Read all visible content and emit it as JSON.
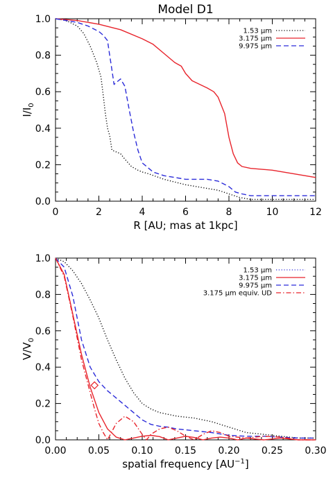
{
  "chart_data": [
    {
      "type": "line",
      "title": "Model D1",
      "xlabel": "R [AU; mas at 1kpc]",
      "ylabel_base": "I/I",
      "ylabel_sub": "0",
      "xlim": [
        0,
        12
      ],
      "ylim": [
        0,
        1.0
      ],
      "xticks": [
        "0",
        "2",
        "4",
        "6",
        "8",
        "10",
        "12"
      ],
      "yticks": [
        "0.0",
        "0.2",
        "0.4",
        "0.6",
        "0.8",
        "1.0"
      ],
      "legend_position": "top-right",
      "series": [
        {
          "name": "1.53 μm",
          "color": "#000000",
          "dash": "dotted",
          "x": [
            0,
            0.5,
            1.0,
            1.3,
            1.6,
            1.9,
            2.1,
            2.2,
            2.3,
            2.4,
            2.5,
            2.6,
            2.8,
            3.0,
            3.2,
            3.5,
            3.8,
            4.0,
            4.3,
            5.0,
            6.0,
            7.0,
            7.5,
            8.0,
            8.5,
            9.0,
            12.0
          ],
          "y": [
            1.0,
            0.99,
            0.96,
            0.92,
            0.85,
            0.76,
            0.68,
            0.58,
            0.48,
            0.4,
            0.36,
            0.28,
            0.27,
            0.26,
            0.23,
            0.19,
            0.17,
            0.16,
            0.15,
            0.12,
            0.09,
            0.07,
            0.06,
            0.04,
            0.02,
            0.01,
            0.01
          ]
        },
        {
          "name": "3.175 μm",
          "color": "#e8232b",
          "dash": "solid",
          "x": [
            0,
            1.0,
            2.0,
            3.0,
            4.0,
            4.5,
            5.0,
            5.5,
            5.8,
            6.0,
            6.3,
            7.0,
            7.3,
            7.5,
            7.8,
            8.0,
            8.2,
            8.4,
            8.6,
            9.0,
            10.0,
            11.0,
            12.0
          ],
          "y": [
            1.0,
            0.99,
            0.97,
            0.94,
            0.89,
            0.86,
            0.81,
            0.76,
            0.74,
            0.7,
            0.66,
            0.62,
            0.6,
            0.57,
            0.48,
            0.35,
            0.26,
            0.21,
            0.19,
            0.18,
            0.17,
            0.15,
            0.13
          ]
        },
        {
          "name": "9.975 μm",
          "color": "#2b2bd9",
          "dash": "dashed",
          "x": [
            0,
            0.5,
            1.0,
            1.5,
            2.0,
            2.2,
            2.4,
            2.5,
            2.6,
            2.7,
            2.8,
            3.0,
            3.2,
            3.4,
            3.6,
            3.8,
            4.0,
            4.2,
            4.5,
            5.0,
            6.0,
            7.0,
            7.5,
            8.0,
            8.3,
            8.6,
            9.0,
            12.0
          ],
          "y": [
            1.0,
            0.99,
            0.98,
            0.96,
            0.93,
            0.91,
            0.88,
            0.8,
            0.72,
            0.64,
            0.65,
            0.67,
            0.63,
            0.5,
            0.38,
            0.28,
            0.21,
            0.19,
            0.16,
            0.14,
            0.12,
            0.12,
            0.11,
            0.08,
            0.05,
            0.04,
            0.03,
            0.03
          ]
        }
      ]
    },
    {
      "type": "line",
      "xlabel_base": "spatial frequency [AU",
      "xlabel_sup": "−1",
      "xlabel_end": "]",
      "ylabel_base": "V/V",
      "ylabel_sub": "0",
      "xlim": [
        0.0,
        0.3
      ],
      "ylim": [
        0,
        1.0
      ],
      "xticks": [
        "0.00",
        "0.05",
        "0.10",
        "0.15",
        "0.20",
        "0.25",
        "0.30"
      ],
      "yticks": [
        "0.0",
        "0.2",
        "0.4",
        "0.6",
        "0.8",
        "1.0"
      ],
      "legend_position": "top-right",
      "series": [
        {
          "name": "1.53 μm",
          "color": "#000000",
          "legend_color": "#2b2bd9",
          "dash": "dotted",
          "x": [
            0,
            0.01,
            0.02,
            0.03,
            0.04,
            0.05,
            0.06,
            0.07,
            0.08,
            0.09,
            0.1,
            0.11,
            0.12,
            0.14,
            0.16,
            0.18,
            0.2,
            0.22,
            0.24,
            0.26,
            0.28,
            0.3
          ],
          "y": [
            1.0,
            0.98,
            0.93,
            0.86,
            0.77,
            0.67,
            0.55,
            0.44,
            0.34,
            0.26,
            0.2,
            0.17,
            0.15,
            0.13,
            0.12,
            0.1,
            0.07,
            0.04,
            0.03,
            0.02,
            0.01,
            0.01
          ]
        },
        {
          "name": "3.175 μm",
          "color": "#e8232b",
          "dash": "solid",
          "x": [
            0,
            0.01,
            0.02,
            0.03,
            0.04,
            0.05,
            0.06,
            0.07,
            0.08,
            0.09,
            0.1,
            0.11,
            0.12,
            0.13,
            0.14,
            0.15,
            0.16,
            0.17,
            0.18,
            0.19,
            0.2,
            0.21,
            0.22,
            0.24,
            0.26,
            0.28,
            0.3
          ],
          "y": [
            1.0,
            0.91,
            0.69,
            0.47,
            0.29,
            0.15,
            0.06,
            0.015,
            0.0,
            0.01,
            0.02,
            0.025,
            0.018,
            0.0,
            0.01,
            0.02,
            0.013,
            0.0,
            0.01,
            0.015,
            0.01,
            0.0,
            0.01,
            0.0,
            0.01,
            0.0,
            0.0
          ]
        },
        {
          "name": "9.975 μm",
          "color": "#2b2bd9",
          "dash": "dashed",
          "x": [
            0,
            0.01,
            0.02,
            0.03,
            0.04,
            0.05,
            0.06,
            0.07,
            0.08,
            0.09,
            0.1,
            0.11,
            0.12,
            0.13,
            0.14,
            0.16,
            0.18,
            0.2,
            0.22,
            0.24,
            0.26,
            0.28,
            0.3
          ],
          "y": [
            1.0,
            0.95,
            0.79,
            0.55,
            0.4,
            0.32,
            0.27,
            0.23,
            0.19,
            0.15,
            0.11,
            0.085,
            0.075,
            0.07,
            0.06,
            0.05,
            0.04,
            0.025,
            0.02,
            0.02,
            0.015,
            0.01,
            0.01
          ]
        },
        {
          "name": "3.175 μm equiv. UD",
          "color": "#e8232b",
          "dash": "dashdot",
          "x": [
            0,
            0.01,
            0.02,
            0.03,
            0.04,
            0.045,
            0.05,
            0.055,
            0.06,
            0.07,
            0.08,
            0.09,
            0.1,
            0.105,
            0.11,
            0.12,
            0.13,
            0.14,
            0.15,
            0.16,
            0.17,
            0.18,
            0.19,
            0.2,
            0.22,
            0.24,
            0.26,
            0.28,
            0.3
          ],
          "y": [
            1.0,
            0.9,
            0.68,
            0.44,
            0.26,
            0.17,
            0.09,
            0.04,
            0.0,
            0.09,
            0.13,
            0.1,
            0.03,
            0.0,
            0.03,
            0.06,
            0.07,
            0.05,
            0.02,
            0.0,
            0.03,
            0.05,
            0.04,
            0.02,
            0.01,
            0.02,
            0.015,
            0.0,
            0.0
          ]
        }
      ],
      "marker": {
        "shape": "diamond",
        "color": "#e8232b",
        "x": 0.045,
        "y": 0.3
      }
    }
  ]
}
